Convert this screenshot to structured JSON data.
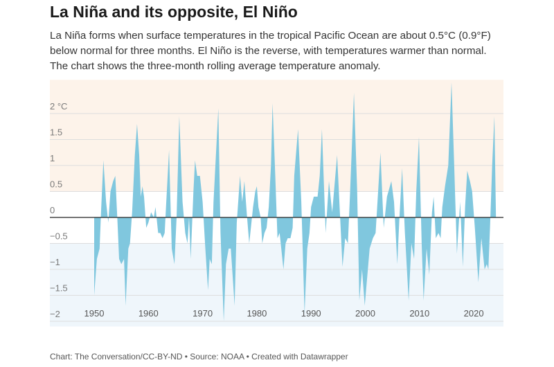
{
  "title": "La Niña and its opposite, El Niño",
  "subtitle": "La Niña forms when surface temperatures in the tropical Pacific Ocean are about 0.5°C (0.9°F) below normal for three months. El Niño is the reverse, with temperatures warmer than normal. The chart shows the three-month rolling average temperature anomaly.",
  "footer": "Chart: The Conversation/CC-BY-ND • Source: NOAA • Created with Datawrapper",
  "chart_data": {
    "type": "area",
    "title": "",
    "xlabel": "",
    "ylabel": "",
    "y_unit": "°C",
    "xlim": [
      1942,
      2025.5
    ],
    "ylim": [
      -2.1,
      2.65
    ],
    "y_ticks": [
      {
        "value": 2,
        "label": "2 °C"
      },
      {
        "value": 1.5,
        "label": "1.5"
      },
      {
        "value": 1,
        "label": "1"
      },
      {
        "value": 0.5,
        "label": "0.5"
      },
      {
        "value": 0,
        "label": "0"
      },
      {
        "value": -0.5,
        "label": "−0.5"
      },
      {
        "value": -1,
        "label": "−1"
      },
      {
        "value": -1.5,
        "label": "−1.5"
      },
      {
        "value": -2,
        "label": "−2"
      }
    ],
    "x_ticks": [
      "1950",
      "1960",
      "1970",
      "1980",
      "1990",
      "2000",
      "2010",
      "2020"
    ],
    "grid": true,
    "shaded_ranges": [
      {
        "from": 0.5,
        "to": 2.65,
        "color": "#fdf3ea"
      },
      {
        "from": -2.1,
        "to": -0.5,
        "color": "#eff6fb"
      }
    ],
    "colors": {
      "area": "#80c7de",
      "zero_line": "#222222",
      "grid": "#dddddd"
    },
    "x": [
      1950.0,
      1950.5,
      1951.0,
      1951.3,
      1951.7,
      1952.2,
      1952.6,
      1953.0,
      1953.5,
      1953.9,
      1954.3,
      1954.6,
      1955.0,
      1955.5,
      1955.8,
      1956.3,
      1956.6,
      1957.0,
      1957.5,
      1957.9,
      1958.3,
      1958.6,
      1958.9,
      1959.2,
      1959.6,
      1960.0,
      1960.5,
      1961.0,
      1961.3,
      1961.8,
      1962.2,
      1962.6,
      1963.0,
      1963.3,
      1963.8,
      1964.3,
      1964.8,
      1965.2,
      1965.7,
      1966.3,
      1966.8,
      1967.2,
      1967.5,
      1967.8,
      1968.3,
      1968.6,
      1969.0,
      1969.5,
      1970.0,
      1970.5,
      1971.0,
      1971.3,
      1971.7,
      1972.0,
      1972.9,
      1973.3,
      1973.9,
      1974.3,
      1974.8,
      1975.2,
      1975.9,
      1976.3,
      1976.9,
      1977.3,
      1977.7,
      1978.2,
      1978.6,
      1979.0,
      1979.3,
      1979.7,
      1980.0,
      1980.3,
      1980.7,
      1981.0,
      1981.4,
      1981.8,
      1982.2,
      1982.6,
      1982.9,
      1983.4,
      1983.8,
      1984.2,
      1984.9,
      1985.3,
      1985.7,
      1986.2,
      1986.6,
      1986.9,
      1987.2,
      1987.6,
      1988.2,
      1988.8,
      1989.3,
      1989.7,
      1990.0,
      1990.5,
      1991.2,
      1991.6,
      1992.0,
      1992.7,
      1993.3,
      1993.9,
      1994.8,
      1995.8,
      1996.3,
      1996.8,
      1997.2,
      1997.9,
      1998.5,
      1998.9,
      1999.4,
      1999.9,
      2000.8,
      2001.4,
      2001.9,
      2002.8,
      2003.4,
      2004.0,
      2004.8,
      2005.3,
      2005.9,
      2006.3,
      2006.8,
      2007.3,
      2008.0,
      2008.5,
      2009.0,
      2009.4,
      2009.9,
      2010.4,
      2010.75,
      2011.3,
      2011.8,
      2012.3,
      2012.6,
      2013.0,
      2013.5,
      2013.9,
      2014.2,
      2014.7,
      2015.3,
      2015.9,
      2016.4,
      2016.9,
      2017.5,
      2018.0,
      2018.4,
      2018.8,
      2019.3,
      2019.7,
      2020.2,
      2020.85,
      2021.4,
      2022.0,
      2022.4,
      2022.7,
      2023.0,
      2023.4,
      2023.8,
      2024.1
    ],
    "values": [
      -1.5,
      -0.8,
      -0.6,
      0.2,
      1.1,
      0.3,
      -0.1,
      0.5,
      0.7,
      0.8,
      -0.1,
      -0.8,
      -0.9,
      -0.8,
      -1.7,
      -0.6,
      -0.5,
      0.1,
      1.2,
      1.8,
      1.2,
      0.4,
      0.6,
      0.4,
      -0.2,
      -0.1,
      0.1,
      0.0,
      0.2,
      -0.3,
      -0.3,
      -0.4,
      -0.3,
      0.3,
      1.3,
      -0.6,
      -0.9,
      0.0,
      1.95,
      0.3,
      -0.3,
      -0.5,
      0.0,
      -0.8,
      0.5,
      1.1,
      0.8,
      0.8,
      0.3,
      -0.6,
      -1.4,
      -0.8,
      -0.9,
      0.3,
      2.1,
      -0.3,
      -2.0,
      -0.9,
      -0.6,
      -0.6,
      -1.7,
      -0.1,
      0.8,
      0.3,
      0.7,
      0.0,
      -0.5,
      -0.1,
      0.2,
      0.5,
      0.6,
      0.2,
      0.0,
      -0.5,
      -0.3,
      -0.2,
      0.2,
      1.0,
      2.2,
      0.8,
      -0.4,
      -0.3,
      -1.0,
      -0.5,
      -0.4,
      -0.4,
      -0.2,
      0.8,
      1.2,
      1.7,
      0.3,
      -1.85,
      -0.6,
      -0.3,
      0.2,
      0.4,
      0.4,
      0.8,
      1.7,
      -0.3,
      0.7,
      0.1,
      1.2,
      -0.95,
      -0.4,
      -0.5,
      0.5,
      2.4,
      0.5,
      -1.6,
      -1.0,
      -1.7,
      -0.6,
      -0.4,
      -0.3,
      1.25,
      -0.2,
      0.4,
      0.7,
      0.3,
      -0.9,
      0.0,
      0.95,
      -0.3,
      -1.6,
      -0.5,
      -0.8,
      0.5,
      1.55,
      -0.5,
      -1.6,
      -0.6,
      -1.1,
      0.1,
      0.4,
      -0.4,
      -0.3,
      -0.4,
      0.2,
      0.6,
      1.0,
      2.6,
      1.0,
      -0.7,
      0.3,
      -0.95,
      0.2,
      0.9,
      0.7,
      0.5,
      -0.2,
      -1.25,
      -0.4,
      -1.0,
      -0.9,
      -1.0,
      -0.2,
      1.0,
      1.95,
      0.0
    ]
  }
}
